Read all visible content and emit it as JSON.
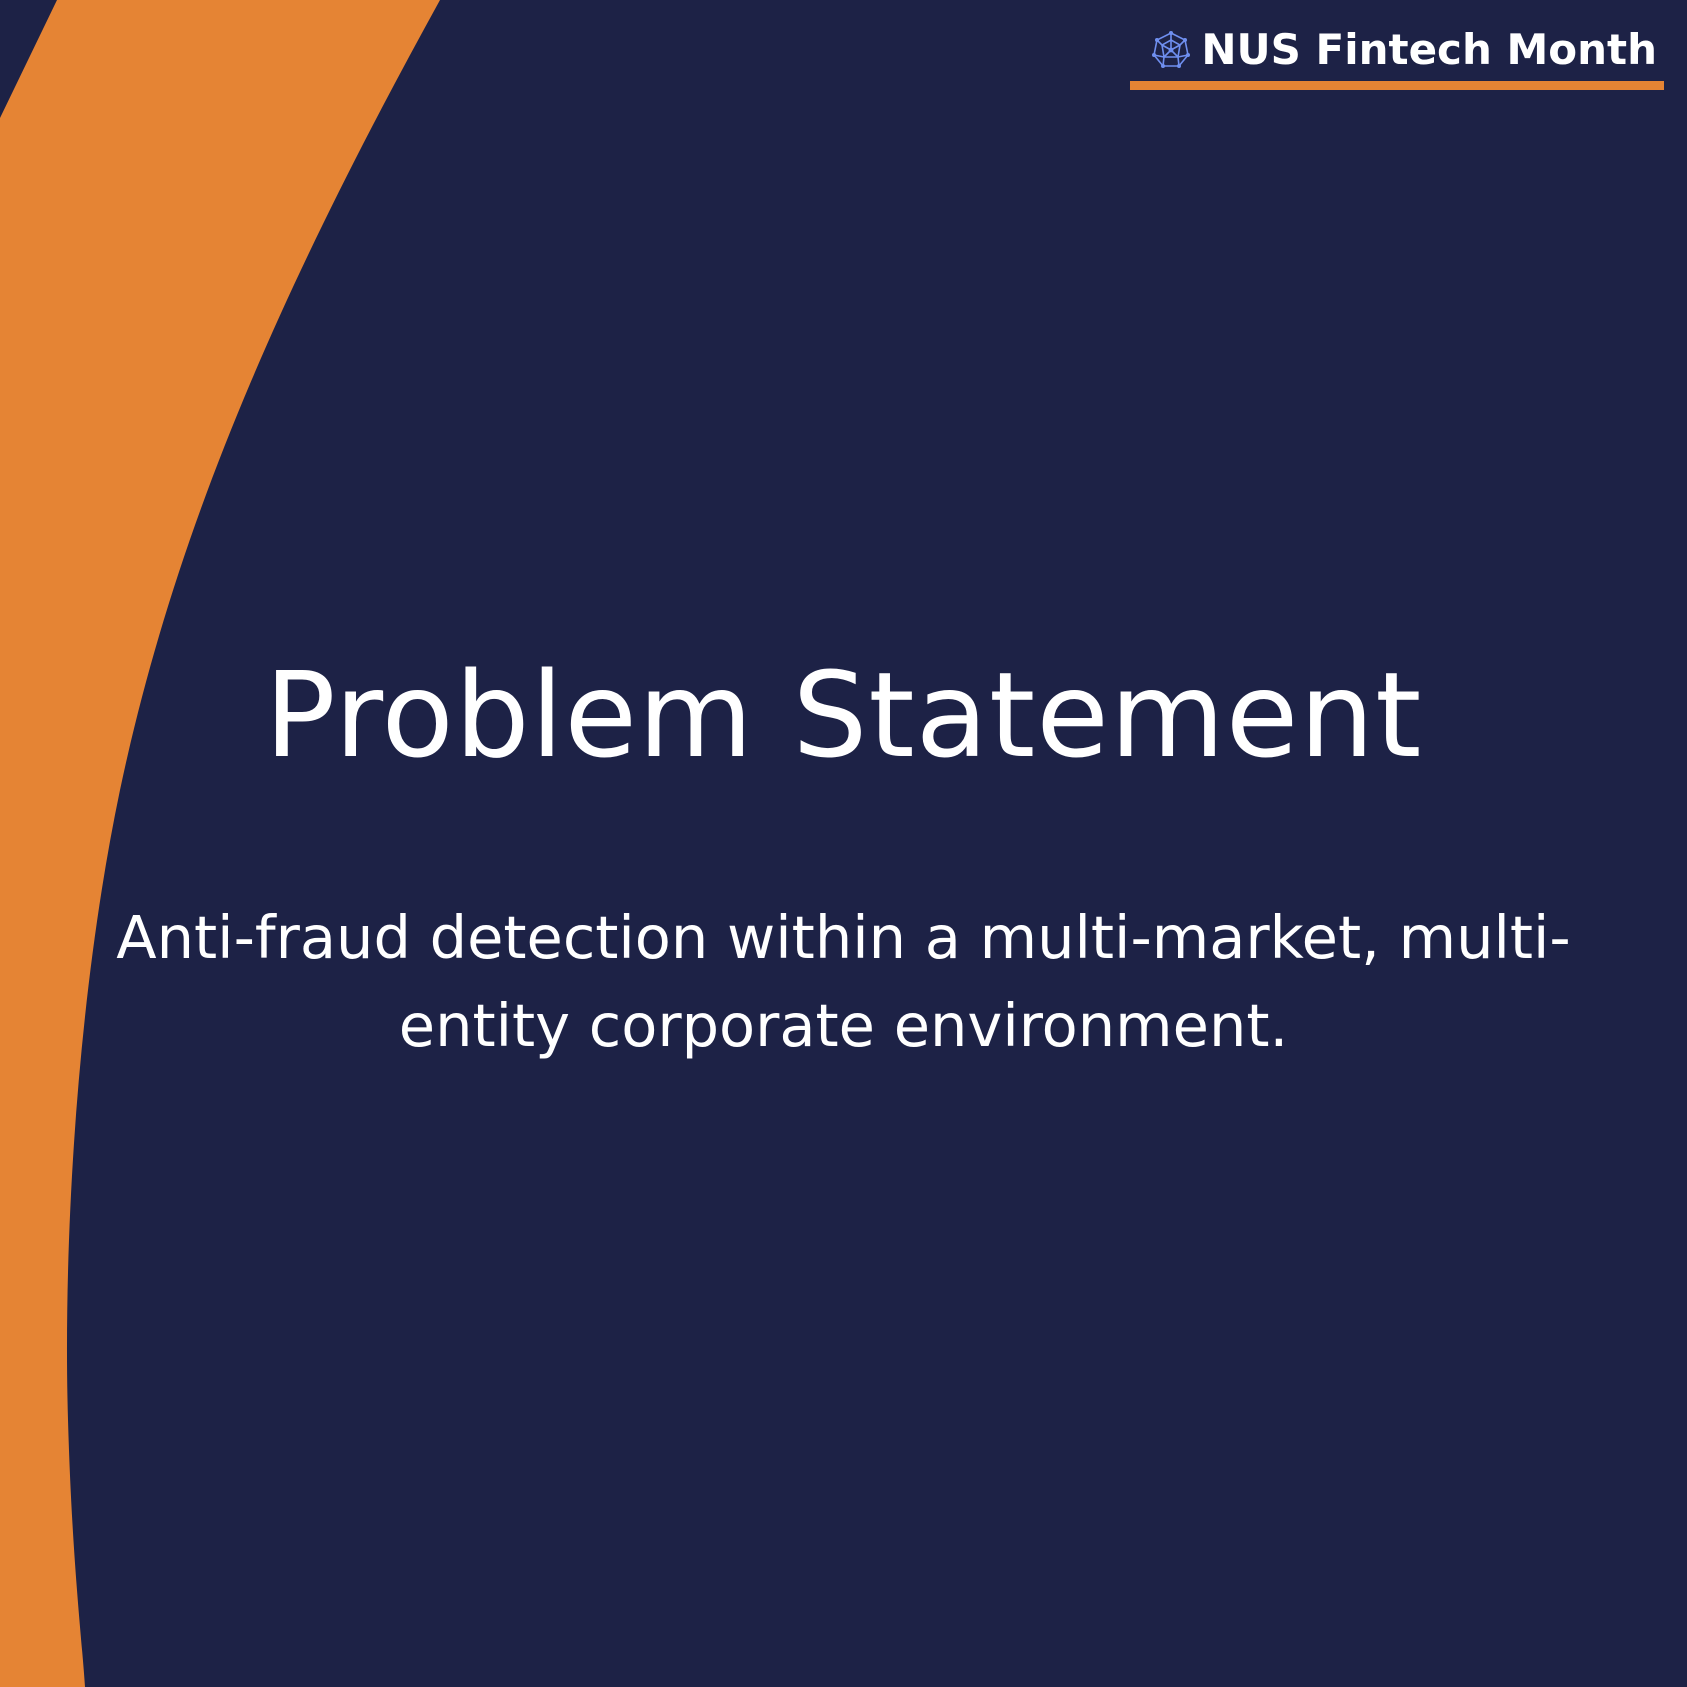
{
  "brand": {
    "logo_icon": "network-globe-icon",
    "name": "NUS Fintech Month"
  },
  "slide": {
    "title": "Problem Statement",
    "subtitle": "Anti-fraud detection within a multi-market, multi-entity corporate environment."
  },
  "colors": {
    "background": "#1d2246",
    "accent": "#e58434",
    "text": "#ffffff",
    "logo": "#6f8ff0"
  }
}
